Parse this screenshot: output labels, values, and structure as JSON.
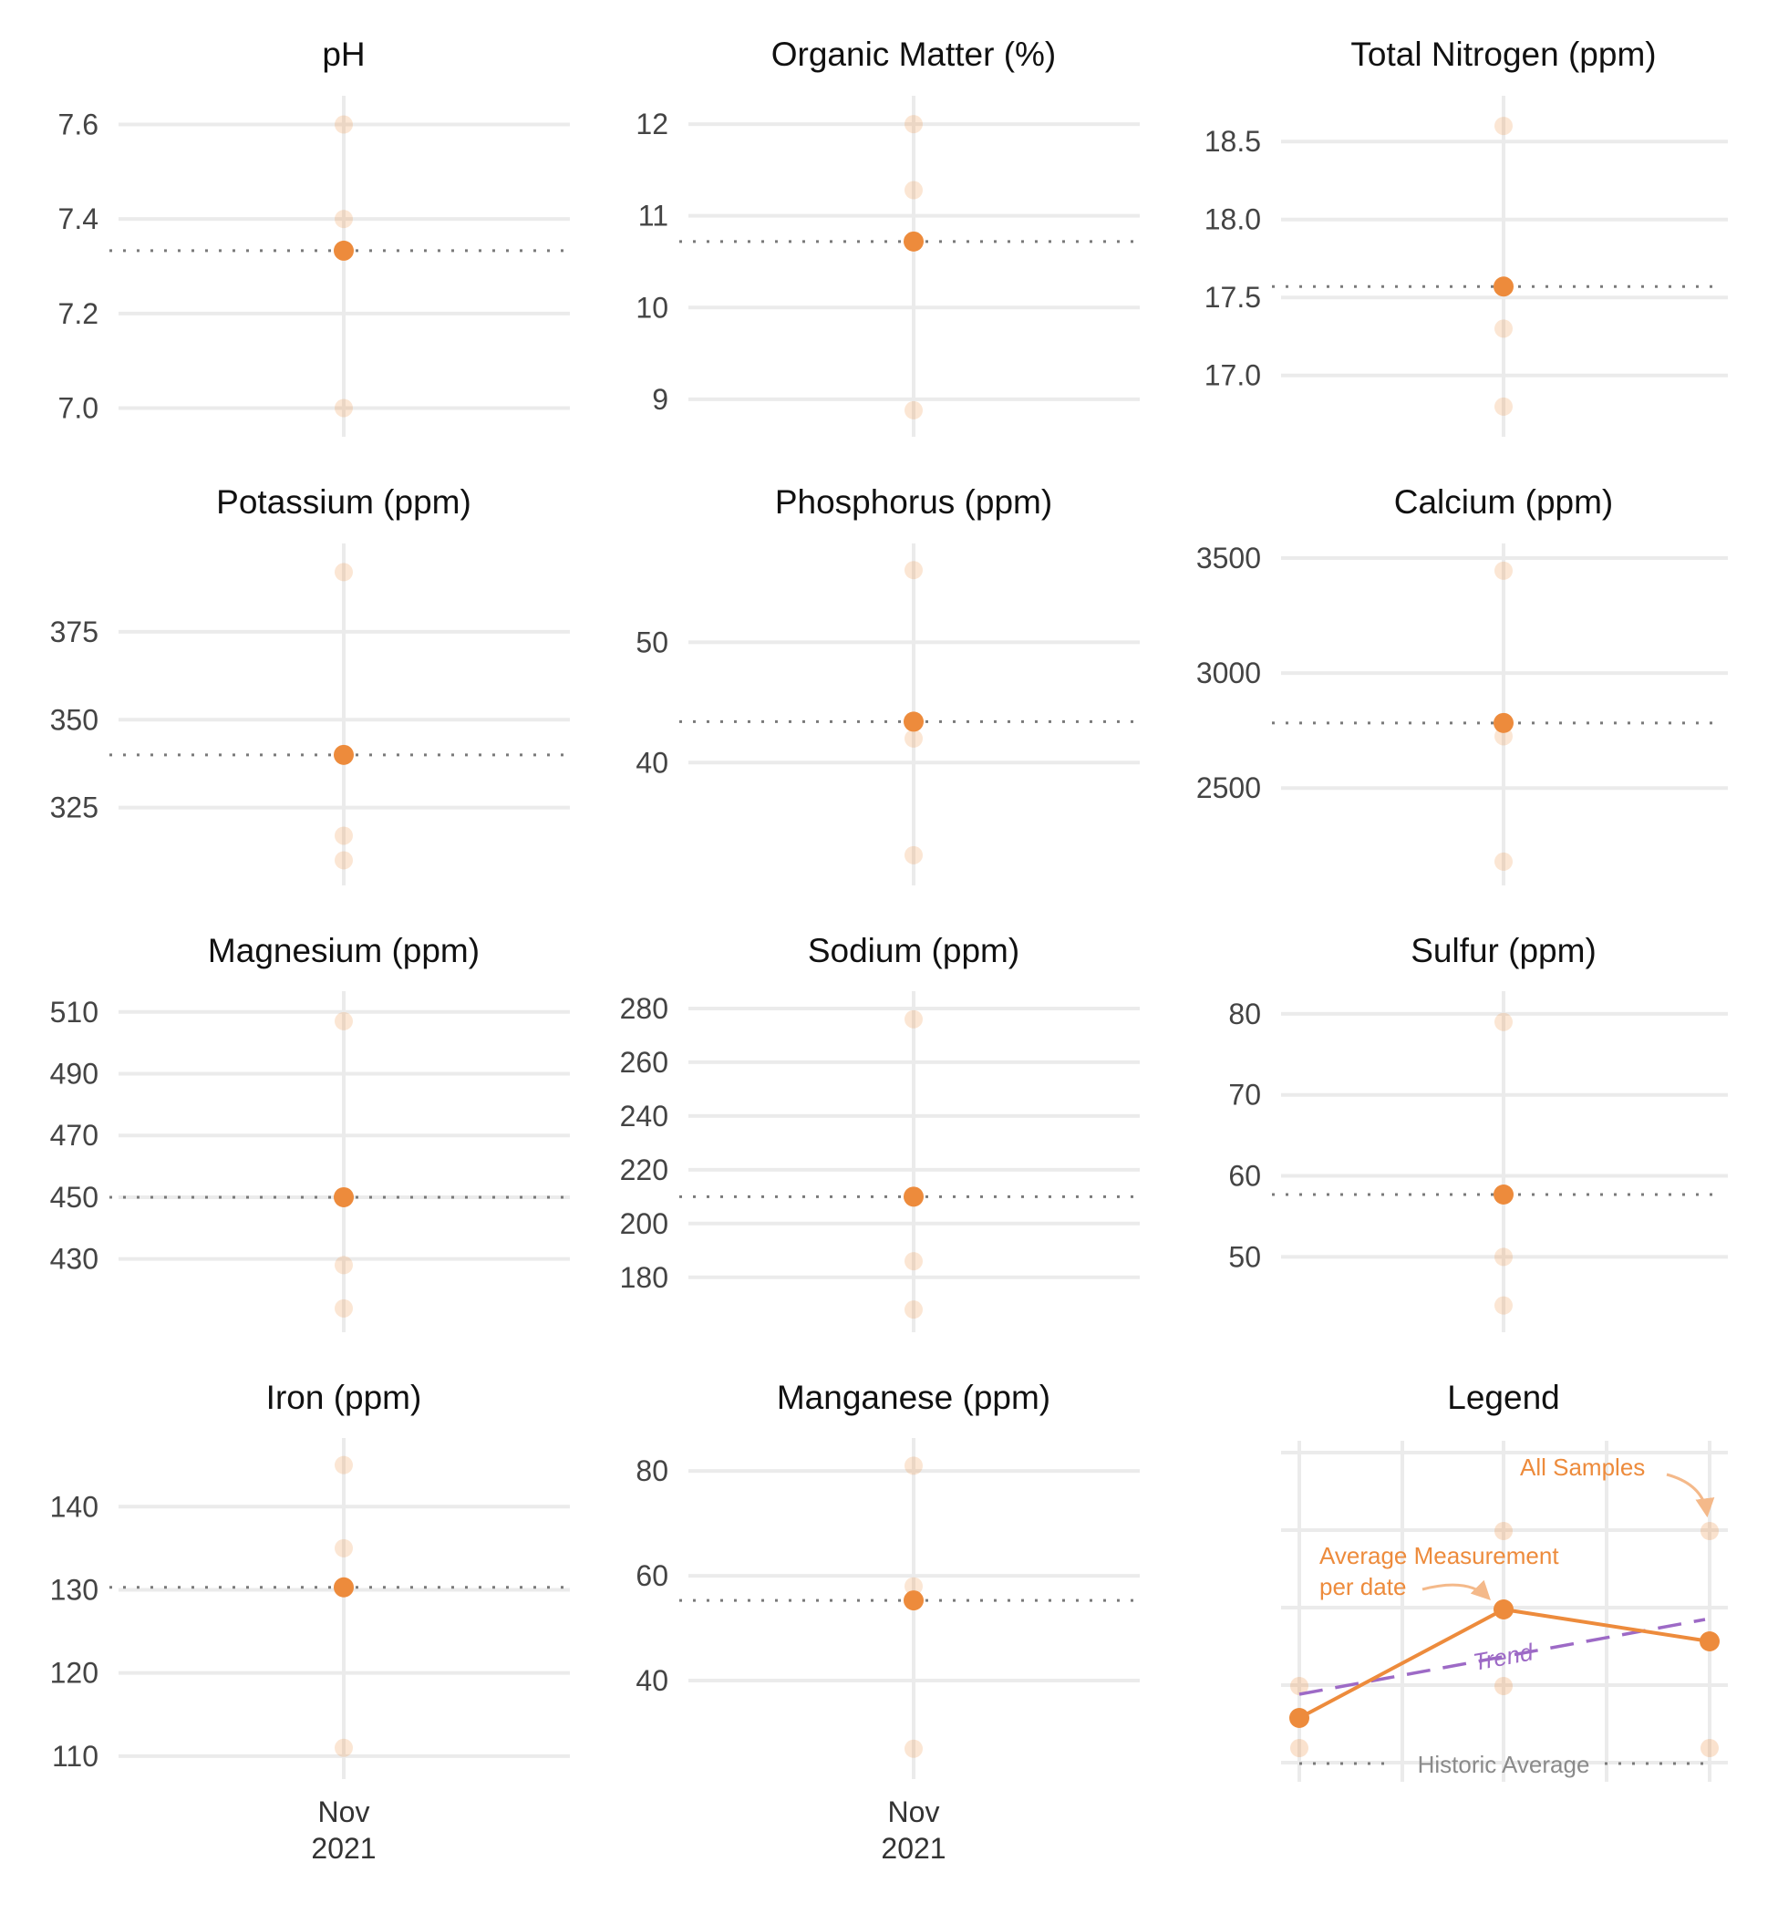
{
  "colors": {
    "average": "#ed8b3c",
    "sample": "#ed8b3c",
    "trend": "#9d6ac6",
    "historic": "#7a7a7a",
    "grid": "#ebebeb"
  },
  "x_tick_label": [
    "Nov",
    "2021"
  ],
  "chart_data": [
    {
      "type": "scatter",
      "title": "pH",
      "x": [
        "Nov 2021"
      ],
      "ylim": [
        6.97,
        7.63
      ],
      "yticks": [
        7.0,
        7.2,
        7.4,
        7.6
      ],
      "ytick_labels": [
        "7.0",
        "7.2",
        "7.4",
        "7.6"
      ],
      "samples": [
        7.6,
        7.4,
        7.0
      ],
      "average": 7.333,
      "historic_average": 7.333
    },
    {
      "type": "scatter",
      "title": "Organic Matter (%)",
      "x": [
        "Nov 2021"
      ],
      "ylim": [
        8.75,
        12.15
      ],
      "yticks": [
        9,
        10,
        11,
        12
      ],
      "ytick_labels": [
        "9",
        "10",
        "11",
        "12"
      ],
      "samples": [
        12.0,
        11.28,
        8.88
      ],
      "average": 10.72,
      "historic_average": 10.72
    },
    {
      "type": "scatter",
      "title": "Total Nitrogen (ppm)",
      "x": [
        "Nov 2021"
      ],
      "ylim": [
        16.7,
        18.7
      ],
      "yticks": [
        17.0,
        17.5,
        18.0,
        18.5
      ],
      "ytick_labels": [
        "17.0",
        "17.5",
        "18.0",
        "18.5"
      ],
      "samples": [
        18.6,
        17.3,
        16.8
      ],
      "average": 17.57,
      "historic_average": 17.57
    },
    {
      "type": "scatter",
      "title": "Potassium (ppm)",
      "x": [
        "Nov 2021"
      ],
      "ylim": [
        307,
        396
      ],
      "yticks": [
        325,
        350,
        375
      ],
      "ytick_labels": [
        "325",
        "350",
        "375"
      ],
      "samples": [
        392,
        317,
        310
      ],
      "average": 340,
      "historic_average": 340
    },
    {
      "type": "scatter",
      "title": "Phosphorus (ppm)",
      "x": [
        "Nov 2021"
      ],
      "ylim": [
        31,
        57
      ],
      "yticks": [
        40,
        50
      ],
      "ytick_labels": [
        "40",
        "50"
      ],
      "samples": [
        56,
        42,
        32.3
      ],
      "average": 43.4,
      "historic_average": 43.4
    },
    {
      "type": "scatter",
      "title": "Calcium (ppm)",
      "x": [
        "Nov 2021"
      ],
      "ylim": [
        2140,
        3500
      ],
      "yticks": [
        2500,
        3000,
        3500
      ],
      "ytick_labels": [
        "2500",
        "3000",
        "3500"
      ],
      "samples": [
        3445,
        2725,
        2180
      ],
      "average": 2783,
      "historic_average": 2783
    },
    {
      "type": "scatter",
      "title": "Magnesium (ppm)",
      "x": [
        "Nov 2021"
      ],
      "ylim": [
        411,
        512
      ],
      "yticks": [
        430,
        450,
        470,
        490,
        510
      ],
      "ytick_labels": [
        "430",
        "450",
        "470",
        "490",
        "510"
      ],
      "samples": [
        507,
        428,
        414
      ],
      "average": 450,
      "historic_average": 450
    },
    {
      "type": "scatter",
      "title": "Sodium (ppm)",
      "x": [
        "Nov 2021"
      ],
      "ylim": [
        165,
        281
      ],
      "yticks": [
        180,
        200,
        220,
        240,
        260,
        280
      ],
      "ytick_labels": [
        "180",
        "200",
        "220",
        "240",
        "260",
        "280"
      ],
      "samples": [
        276,
        186,
        168
      ],
      "average": 210,
      "historic_average": 210
    },
    {
      "type": "scatter",
      "title": "Sulfur (ppm)",
      "x": [
        "Nov 2021"
      ],
      "ylim": [
        42.5,
        81
      ],
      "yticks": [
        50,
        60,
        70,
        80
      ],
      "ytick_labels": [
        "50",
        "60",
        "70",
        "80"
      ],
      "samples": [
        79,
        50,
        44
      ],
      "average": 57.7,
      "historic_average": 57.7
    },
    {
      "type": "scatter",
      "title": "Iron (ppm)",
      "x": [
        "Nov 2021"
      ],
      "ylim": [
        109,
        146.5
      ],
      "yticks": [
        110,
        120,
        130,
        140
      ],
      "ytick_labels": [
        "110",
        "120",
        "130",
        "140"
      ],
      "samples": [
        145,
        135,
        111
      ],
      "average": 130.3,
      "historic_average": 130.3
    },
    {
      "type": "scatter",
      "title": "Manganese (ppm)",
      "x": [
        "Nov 2021"
      ],
      "ylim": [
        24,
        83.5
      ],
      "yticks": [
        40,
        60,
        80
      ],
      "ytick_labels": [
        "40",
        "60",
        "80"
      ],
      "samples": [
        81,
        58,
        27
      ],
      "average": 55.3,
      "historic_average": 55.3
    }
  ],
  "legend": {
    "title": "Legend",
    "all_samples": "All Samples",
    "average_line1": "Average Measurement",
    "average_line2": "per date",
    "trend": "Trend",
    "historic": "Historic Average"
  }
}
